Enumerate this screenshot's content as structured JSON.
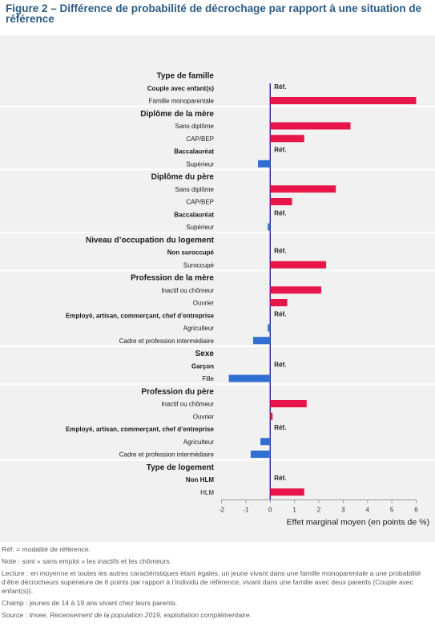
{
  "figure": {
    "title": "Figure 2 – Différence de probabilité de décrochage par rapport à une situation de référence"
  },
  "colors": {
    "positive": "#e8154a",
    "negative": "#2f6fd1",
    "plot_background": "#f1f1f1",
    "title": "#2b5b84",
    "zero_line": "#00008b"
  },
  "chart_data": {
    "type": "bar",
    "orientation": "horizontal",
    "xlabel": "Effet marginal moyen (en points de %)",
    "xlim": [
      -2,
      6
    ],
    "xticks": [
      "-2",
      "-1",
      "0",
      "1",
      "2",
      "3",
      "4",
      "5",
      "6"
    ],
    "ref_label": "Réf.",
    "groups": [
      {
        "title": "Type de famille",
        "items": [
          {
            "label": "Couple avec enfant(s)",
            "ref": true,
            "value": 0
          },
          {
            "label": "Famille monoparentale",
            "ref": false,
            "value": 6.0
          }
        ]
      },
      {
        "title": "Diplôme de la mère",
        "items": [
          {
            "label": "Sans diplôme",
            "ref": false,
            "value": 3.3
          },
          {
            "label": "CAP/BEP",
            "ref": false,
            "value": 1.4
          },
          {
            "label": "Baccalauréat",
            "ref": true,
            "value": 0
          },
          {
            "label": "Supérieur",
            "ref": false,
            "value": -0.5
          }
        ]
      },
      {
        "title": "Diplôme du père",
        "items": [
          {
            "label": "Sans diplôme",
            "ref": false,
            "value": 2.7
          },
          {
            "label": "CAP/BEP",
            "ref": false,
            "value": 0.9
          },
          {
            "label": "Baccalauréat",
            "ref": true,
            "value": 0
          },
          {
            "label": "Supérieur",
            "ref": false,
            "value": -0.1
          }
        ]
      },
      {
        "title": "Niveau d’occupation du logement",
        "items": [
          {
            "label": "Non suroccupé",
            "ref": true,
            "value": 0
          },
          {
            "label": "Suroccupé",
            "ref": false,
            "value": 2.3
          }
        ]
      },
      {
        "title": "Profession de la mère",
        "items": [
          {
            "label": "Inactif ou chômeur",
            "ref": false,
            "value": 2.1
          },
          {
            "label": "Ouvrier",
            "ref": false,
            "value": 0.7
          },
          {
            "label": "Employé, artisan, commerçant, chef d’entreprise",
            "ref": true,
            "value": 0
          },
          {
            "label": "Agriculteur",
            "ref": false,
            "value": -0.1
          },
          {
            "label": "Cadre et profession intermédiaire",
            "ref": false,
            "value": -0.7
          }
        ]
      },
      {
        "title": "Sexe",
        "items": [
          {
            "label": "Garçon",
            "ref": true,
            "value": 0
          },
          {
            "label": "Fille",
            "ref": false,
            "value": -1.7
          }
        ]
      },
      {
        "title": "Profession du père",
        "items": [
          {
            "label": "Inactif ou chômeur",
            "ref": false,
            "value": 1.5
          },
          {
            "label": "Ouvrier",
            "ref": false,
            "value": 0.1
          },
          {
            "label": "Employé, artisan, commerçant, chef d’entreprise",
            "ref": true,
            "value": 0
          },
          {
            "label": "Agriculteur",
            "ref": false,
            "value": -0.4
          },
          {
            "label": "Cadre et profession intermédiaire",
            "ref": false,
            "value": -0.8
          }
        ]
      },
      {
        "title": "Type de logement",
        "items": [
          {
            "label": "Non HLM",
            "ref": true,
            "value": 0
          },
          {
            "label": "HLM",
            "ref": false,
            "value": 1.4
          }
        ]
      }
    ]
  },
  "notes": {
    "ref_note": "Réf. = modalité de référence.",
    "note": "Note : sont « sans emploi » les inactifs et les chômeurs.",
    "lecture": "Lecture : en moyenne et toutes les autres caractéristiques étant égales, un jeune vivant dans une famille monoparentale a une probabilité d’être décrocheurs supérieure de 6 points par rapport à l’individu de référence, vivant dans une famille avec deux parents (Couple avec enfant(s)).",
    "champ": "Champ : jeunes de 14 à 19 ans vivant chez leurs parents.",
    "source": "Source : Insee, Recensement de la population 2019, exploitation complémentaire."
  }
}
